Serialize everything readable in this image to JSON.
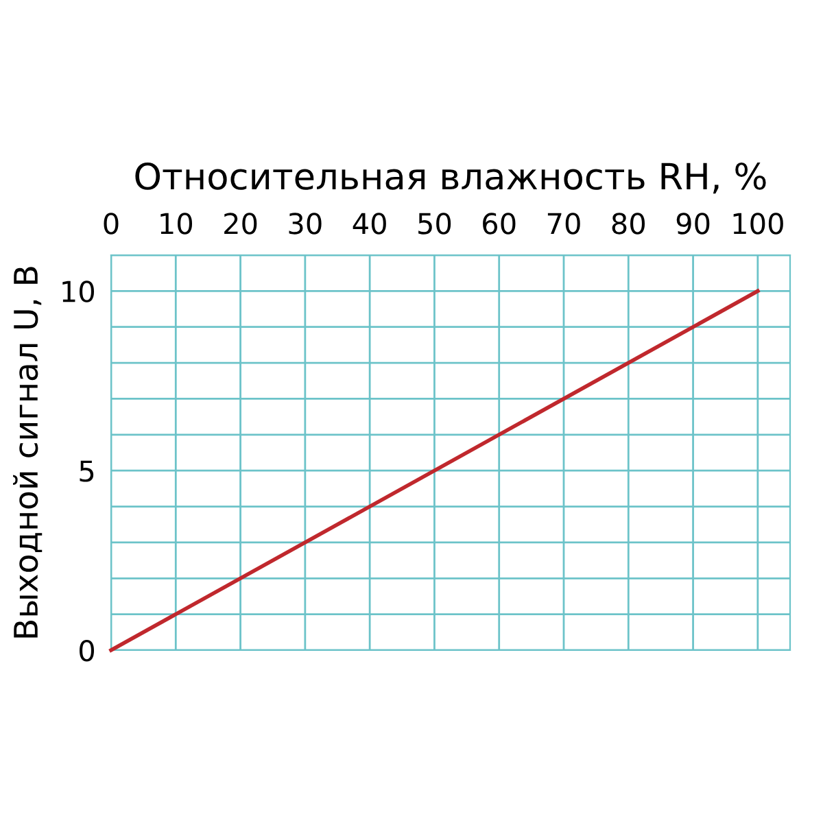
{
  "chart_data": {
    "type": "line",
    "xlabel": "Относительная влажность RH, %",
    "ylabel": "Выходной сигнал U, В",
    "x": [
      0,
      100
    ],
    "series": [
      {
        "color": "#c0282d",
        "values": [
          0,
          10
        ]
      }
    ],
    "xlim": [
      0,
      105
    ],
    "xticks": [
      0,
      10,
      20,
      30,
      40,
      50,
      60,
      70,
      80,
      90,
      100
    ],
    "ylim": [
      0,
      11
    ],
    "yticks": [
      0,
      {
        "value": 1,
        "label": null
      },
      {
        "value": 2,
        "label": null
      },
      {
        "value": 3,
        "label": null
      },
      {
        "value": 4,
        "label": null
      },
      5,
      {
        "value": 6,
        "label": null
      },
      {
        "value": 7,
        "label": null
      },
      {
        "value": 8,
        "label": null
      },
      {
        "value": 9,
        "label": null
      },
      10,
      {
        "value": 11,
        "label": null
      }
    ],
    "grid": true,
    "marker": "none",
    "line_style": "solid"
  }
}
